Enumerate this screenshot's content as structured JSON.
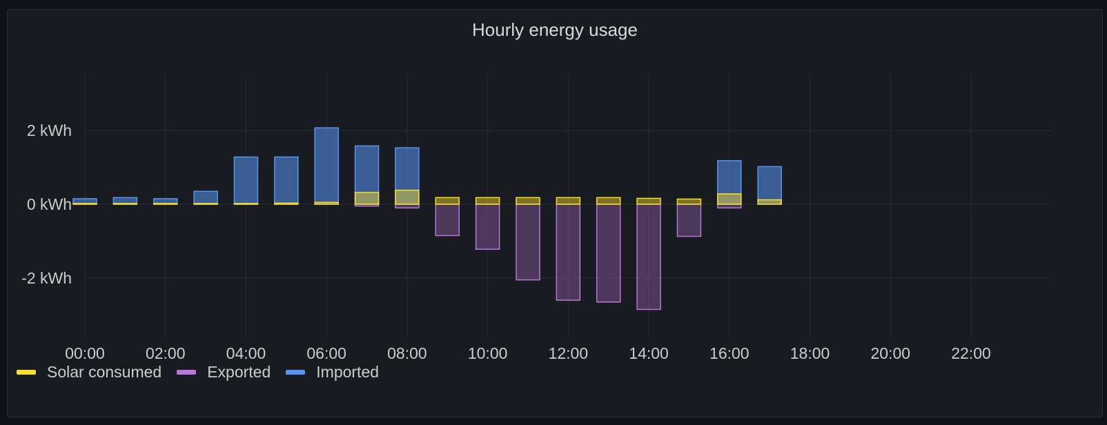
{
  "chart_data": {
    "type": "bar",
    "title": "Hourly energy usage",
    "ylabel": "",
    "xlabel": "",
    "y_unit": "kWh",
    "ylim": [
      -3.5,
      3.5
    ],
    "y_ticks": [
      2,
      0,
      -2
    ],
    "y_tick_labels": [
      "2 kWh",
      "0 kWh",
      "-2 kWh"
    ],
    "x_tick_labels": [
      "00:00",
      "02:00",
      "04:00",
      "06:00",
      "08:00",
      "10:00",
      "12:00",
      "14:00",
      "16:00",
      "18:00",
      "20:00",
      "22:00"
    ],
    "categories": [
      "00:00",
      "01:00",
      "02:00",
      "03:00",
      "04:00",
      "05:00",
      "06:00",
      "07:00",
      "08:00",
      "09:00",
      "10:00",
      "11:00",
      "12:00",
      "13:00",
      "14:00",
      "15:00",
      "16:00",
      "17:00",
      "18:00",
      "19:00",
      "20:00",
      "21:00",
      "22:00",
      "23:00"
    ],
    "grid": true,
    "legend_position": "bottom-left",
    "series": [
      {
        "name": "Solar consumed",
        "color": "#fade2a",
        "values": [
          0.02,
          0.02,
          0.02,
          0.02,
          0.02,
          0.03,
          0.05,
          0.32,
          0.38,
          0.18,
          0.18,
          0.18,
          0.18,
          0.18,
          0.16,
          0.14,
          0.28,
          0.12,
          null,
          null,
          null,
          null,
          null,
          null
        ]
      },
      {
        "name": "Exported",
        "color": "#b877d9",
        "values": [
          0,
          0,
          0,
          0,
          0,
          0,
          0,
          -0.05,
          -0.1,
          -0.85,
          -1.22,
          -2.05,
          -2.6,
          -2.65,
          -2.85,
          -0.87,
          -0.1,
          0,
          null,
          null,
          null,
          null,
          null,
          null
        ]
      },
      {
        "name": "Imported",
        "color": "#5794f2",
        "values": [
          0.15,
          0.18,
          0.15,
          0.35,
          1.28,
          1.28,
          2.07,
          1.58,
          1.53,
          0,
          0,
          0,
          0,
          0,
          0,
          0,
          1.18,
          1.02,
          null,
          null,
          null,
          null,
          null,
          null
        ]
      }
    ]
  }
}
